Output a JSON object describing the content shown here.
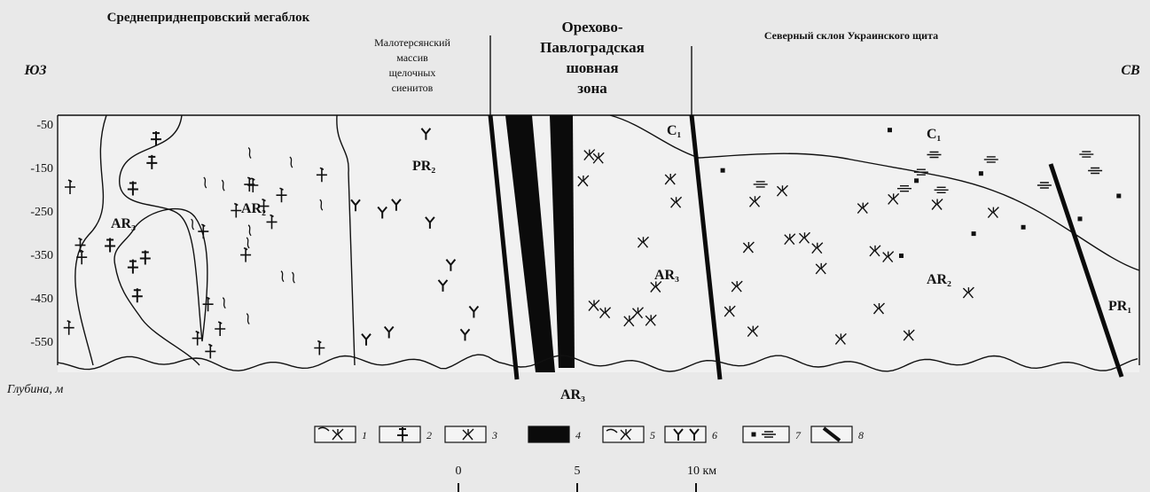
{
  "header": {
    "left_region": "Среднеприднепровский мегаблок",
    "massif": [
      "Малотерсянский",
      "массив",
      "щелочных",
      "сиенитов"
    ],
    "zone": [
      "Орехово-",
      "Павлоградская",
      "шовная",
      "зона"
    ],
    "right_region": "Северный склон Украинского щита",
    "direction_left": "ЮЗ",
    "direction_right": "СВ"
  },
  "depth_axis": {
    "ticks": [
      -50,
      -150,
      -250,
      -350,
      -450,
      -550
    ],
    "label": "Глубина, м"
  },
  "units": [
    "AR₃",
    "AR₂",
    "PR₂",
    "C₁",
    "AR₃",
    "C₁",
    "AR₂",
    "PR₁",
    "AR₃"
  ],
  "legend": [
    "1",
    "2",
    "3",
    "4",
    "5",
    "6",
    "7",
    "8"
  ],
  "scale": [
    "0",
    "5",
    "10 км"
  ]
}
